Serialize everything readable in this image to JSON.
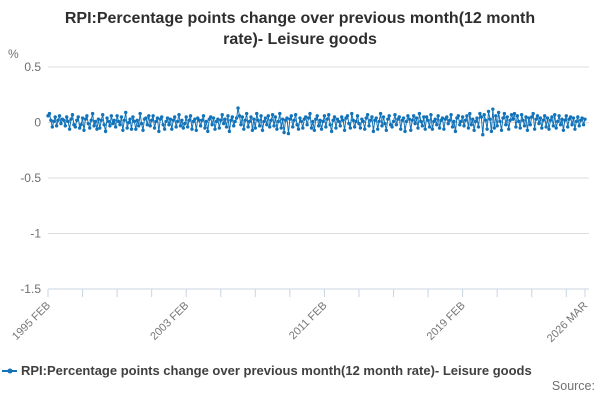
{
  "title": {
    "text": "RPI:Percentage points change over previous month(12 month rate)- Leisure goods"
  },
  "legend": {
    "label": "RPI:Percentage points change over previous month(12 month rate)- Leisure goods"
  },
  "source": {
    "label": "Source:"
  },
  "colors": {
    "series": "#1373b9",
    "grid": "#dcdcdc",
    "axis": "#c9d5e2",
    "tick_text": "#767676",
    "ytick_text": "#6e6e6e",
    "title_text": "#2e2e2e"
  },
  "chart_data": {
    "type": "line",
    "title": "RPI:Percentage points change over previous month(12 month rate)- Leisure goods",
    "ylabel": "",
    "xlabel": "",
    "unit": "%",
    "ylim": [
      -1.5,
      0.5
    ],
    "yticks": [
      0.5,
      0,
      -0.5,
      -1,
      -1.5
    ],
    "grid": "horizontal-only",
    "legend_position": "bottom-left",
    "x_start": "1995 FEB",
    "x_end": "2026 MAR",
    "x_frequency": "monthly",
    "x_minor_tick_interval_months": 24,
    "x_labeled_ticks": [
      {
        "index": 0,
        "label": "1995 FEB"
      },
      {
        "index": 96,
        "label": "2003 FEB"
      },
      {
        "index": 192,
        "label": "2011 FEB"
      },
      {
        "index": 288,
        "label": "2019 FEB"
      },
      {
        "index": 373,
        "label": "2026 MAR"
      }
    ],
    "series": [
      {
        "name": "RPI:Percentage points change over previous month(12 month rate)- Leisure goods",
        "color": "#1373b9",
        "values": [
          0.06,
          0.08,
          0.02,
          -0.04,
          0.01,
          0.05,
          -0.03,
          0.02,
          0.06,
          -0.01,
          0.03,
          0.02,
          -0.03,
          0.05,
          0.01,
          -0.06,
          0.03,
          0.07,
          -0.02,
          -0.04,
          0.02,
          0.05,
          -0.05,
          -0.02,
          0.04,
          -0.07,
          0.03,
          0.06,
          -0.01,
          -0.05,
          0.02,
          0.08,
          -0.03,
          0.01,
          -0.06,
          0.03,
          -0.05,
          0.02,
          0.07,
          -0.02,
          -0.08,
          0.04,
          0.01,
          -0.03,
          0.06,
          -0.01,
          0.02,
          -0.04,
          0.06,
          0.01,
          -0.02,
          0.05,
          -0.07,
          0.02,
          0.09,
          -0.05,
          0,
          0.03,
          -0.06,
          0.05,
          0.01,
          -0.06,
          0.02,
          -0.03,
          0.08,
          -0.01,
          -0.07,
          0.03,
          0.04,
          -0.02,
          0.06,
          -0.03,
          0.02,
          0.06,
          -0.05,
          0.01,
          0.04,
          -0.08,
          0.03,
          0.05,
          -0.02,
          -0.06,
          0.01,
          0.04,
          -0.02,
          0.03,
          -0.06,
          0.02,
          0.05,
          -0.04,
          0.01,
          0.07,
          -0.03,
          0.02,
          -0.05,
          -0.01,
          0.05,
          -0.04,
          0.02,
          0.06,
          -0.06,
          0.01,
          0.03,
          -0.07,
          0.04,
          0.02,
          -0.03,
          0.02,
          0.06,
          -0.05,
          0.01,
          -0.08,
          0.03,
          0.05,
          -0.02,
          0.04,
          -0.06,
          0.01,
          0.03,
          -0.05,
          0.02,
          0.07,
          -0.01,
          0.03,
          -0.04,
          0.06,
          -0.08,
          0.02,
          0.05,
          -0.03,
          0.01,
          0.04,
          0.13,
          0.06,
          -0.02,
          0.05,
          -0.06,
          0.02,
          0.08,
          -0.04,
          0.01,
          0.05,
          -0.07,
          0.03,
          -0.05,
          0.08,
          0.02,
          -0.03,
          0.06,
          -0.07,
          0.01,
          0.04,
          -0.02,
          0.06,
          -0.04,
          0.02,
          0.07,
          -0.03,
          0.05,
          -0.06,
          0.01,
          0.08,
          -0.05,
          0.03,
          -0.09,
          0.02,
          0.04,
          -0.1,
          0.03,
          0.06,
          -0.04,
          0.02,
          0.07,
          -0.02,
          -0.06,
          0.04,
          0.01,
          -0.05,
          0.03,
          0.05,
          -0.02,
          0.04,
          0.08,
          -0.05,
          0.01,
          -0.07,
          0.03,
          0.06,
          -0.03,
          0.02,
          -0.06,
          0.01,
          0.06,
          -0.04,
          0.03,
          0.07,
          -0.02,
          -0.08,
          0.02,
          0.05,
          -0.05,
          0.03,
          0.01,
          -0.03,
          0.05,
          0.02,
          -0.07,
          0.04,
          0.06,
          -0.01,
          -0.05,
          0.08,
          0.02,
          -0.04,
          0.01,
          0.06,
          -0.01,
          -0.05,
          0.03,
          0.01,
          -0.06,
          0.04,
          0.07,
          -0.03,
          0.02,
          0.05,
          -0.08,
          0.02,
          0.04,
          -0.06,
          0.01,
          0.08,
          -0.03,
          0.05,
          -0.01,
          -0.07,
          0.03,
          0.06,
          -0.02,
          -0.04,
          0.01,
          0.07,
          -0.02,
          0.03,
          0.05,
          -0.06,
          0.02,
          0.04,
          -0.08,
          0.01,
          0.06,
          0.03,
          -0.07,
          0.02,
          0.06,
          -0.01,
          0.04,
          -0.05,
          0.08,
          0.01,
          -0.03,
          0.05,
          -0.06,
          0.05,
          0.02,
          -0.04,
          0.07,
          -0.06,
          0.01,
          0.03,
          -0.02,
          0.06,
          -0.05,
          0.02,
          0.04,
          -0.06,
          0.03,
          0.05,
          -0.01,
          0.02,
          0.07,
          -0.04,
          0.01,
          -0.08,
          0.04,
          0.06,
          -0.02,
          0.01,
          0.05,
          -0.03,
          0.02,
          0.06,
          -0.05,
          0.08,
          -0.02,
          0.03,
          -0.07,
          0.01,
          0.04,
          -0.04,
          0.08,
          0.05,
          -0.11,
          0.07,
          0.02,
          -0.06,
          0.1,
          0.03,
          -0.08,
          0.12,
          -0.05,
          0.06,
          -0.03,
          0.09,
          0.01,
          -0.07,
          0.04,
          0.08,
          -0.02,
          0.05,
          -0.06,
          0.02,
          0.07,
          0.03,
          0.08,
          -0.04,
          0.06,
          0.01,
          -0.05,
          0.07,
          0.02,
          -0.03,
          0.05,
          -0.07,
          0.04,
          -0.02,
          0.05,
          0.08,
          -0.06,
          0.03,
          0.06,
          -0.01,
          0.04,
          -0.05,
          0.02,
          0.06,
          -0.04,
          0.04,
          -0.06,
          0.02,
          0.05,
          -0.03,
          0.07,
          -0.05,
          0.01,
          0.06,
          -0.02,
          0.03,
          -0.07,
          0.02,
          0.06,
          -0.04,
          0.03,
          0.05,
          -0.02,
          0.04,
          -0.06,
          0.01,
          0.05,
          -0.03,
          0.02,
          0.04,
          -0.02,
          0.03
        ]
      }
    ]
  }
}
